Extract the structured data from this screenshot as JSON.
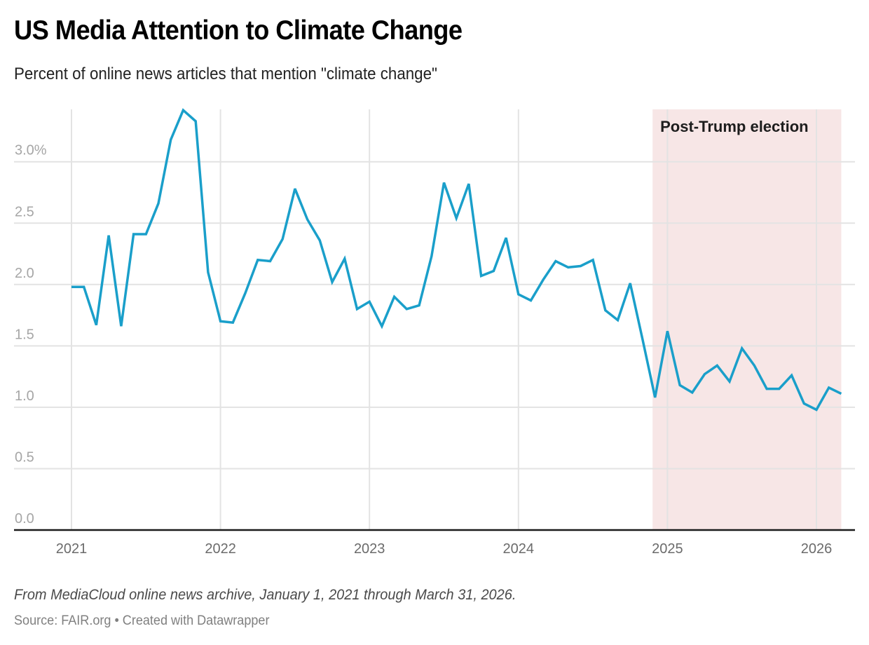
{
  "chart_data": {
    "type": "line",
    "title": "US Media Attention to Climate Change",
    "subtitle": "Percent of online news articles that mention \"climate change\"",
    "xlabel": "",
    "ylabel": "",
    "ylim": [
      0,
      3.42
    ],
    "y_ticks": [
      0,
      0.5,
      1.0,
      1.5,
      2.0,
      2.5,
      3.0
    ],
    "y_tick_labels": [
      "0.0",
      "0.5",
      "1.0",
      "1.5",
      "2.0",
      "2.5",
      "3.0%"
    ],
    "x_range": [
      "2021-01",
      "2026-03"
    ],
    "x_ticks": [
      "2021",
      "2022",
      "2023",
      "2024",
      "2025",
      "2026"
    ],
    "grid": true,
    "line_color": "#1a9fca",
    "band": {
      "label": "Post-Trump election",
      "start": "2024-11.8",
      "end": "2026-03",
      "color": "#f7e6e6"
    },
    "series": [
      {
        "name": "Percent mentioning climate change",
        "x": [
          "2021-01",
          "2021-02",
          "2021-03",
          "2021-04",
          "2021-05",
          "2021-06",
          "2021-07",
          "2021-08",
          "2021-09",
          "2021-10",
          "2021-11",
          "2021-12",
          "2022-01",
          "2022-02",
          "2022-03",
          "2022-04",
          "2022-05",
          "2022-06",
          "2022-07",
          "2022-08",
          "2022-09",
          "2022-10",
          "2022-11",
          "2022-12",
          "2023-01",
          "2023-02",
          "2023-03",
          "2023-04",
          "2023-05",
          "2023-06",
          "2023-07",
          "2023-08",
          "2023-09",
          "2023-10",
          "2023-11",
          "2023-12",
          "2024-01",
          "2024-02",
          "2024-03",
          "2024-04",
          "2024-05",
          "2024-06",
          "2024-07",
          "2024-08",
          "2024-09",
          "2024-10",
          "2024-11",
          "2024-12",
          "2025-01",
          "2025-02",
          "2025-03",
          "2025-04",
          "2025-05",
          "2025-06",
          "2025-07",
          "2025-08",
          "2025-09",
          "2025-10",
          "2025-11",
          "2025-12",
          "2026-01",
          "2026-02",
          "2026-03"
        ],
        "values": [
          1.98,
          1.98,
          1.67,
          2.4,
          1.66,
          2.41,
          2.41,
          2.66,
          3.18,
          3.42,
          3.33,
          2.1,
          1.7,
          1.69,
          1.93,
          2.2,
          2.19,
          2.37,
          2.78,
          2.53,
          2.36,
          2.02,
          2.21,
          1.8,
          1.86,
          1.66,
          1.9,
          1.8,
          1.83,
          2.23,
          2.83,
          2.54,
          2.82,
          2.07,
          2.11,
          2.38,
          1.92,
          1.87,
          2.04,
          2.19,
          2.14,
          2.15,
          2.2,
          1.79,
          1.71,
          2.01,
          1.55,
          1.08,
          1.62,
          1.18,
          1.12,
          1.27,
          1.34,
          1.21,
          1.48,
          1.34,
          1.15,
          1.15,
          1.26,
          1.03,
          0.98,
          1.16,
          1.11
        ]
      }
    ]
  },
  "header": {
    "title": "US Media Attention to Climate Change",
    "subtitle": "Percent of online news articles that mention \"climate change\""
  },
  "footer": {
    "notes": "From MediaCloud online news archive, January 1, 2021 through March 31, 2026.",
    "source": "Source: FAIR.org • Created with Datawrapper"
  }
}
